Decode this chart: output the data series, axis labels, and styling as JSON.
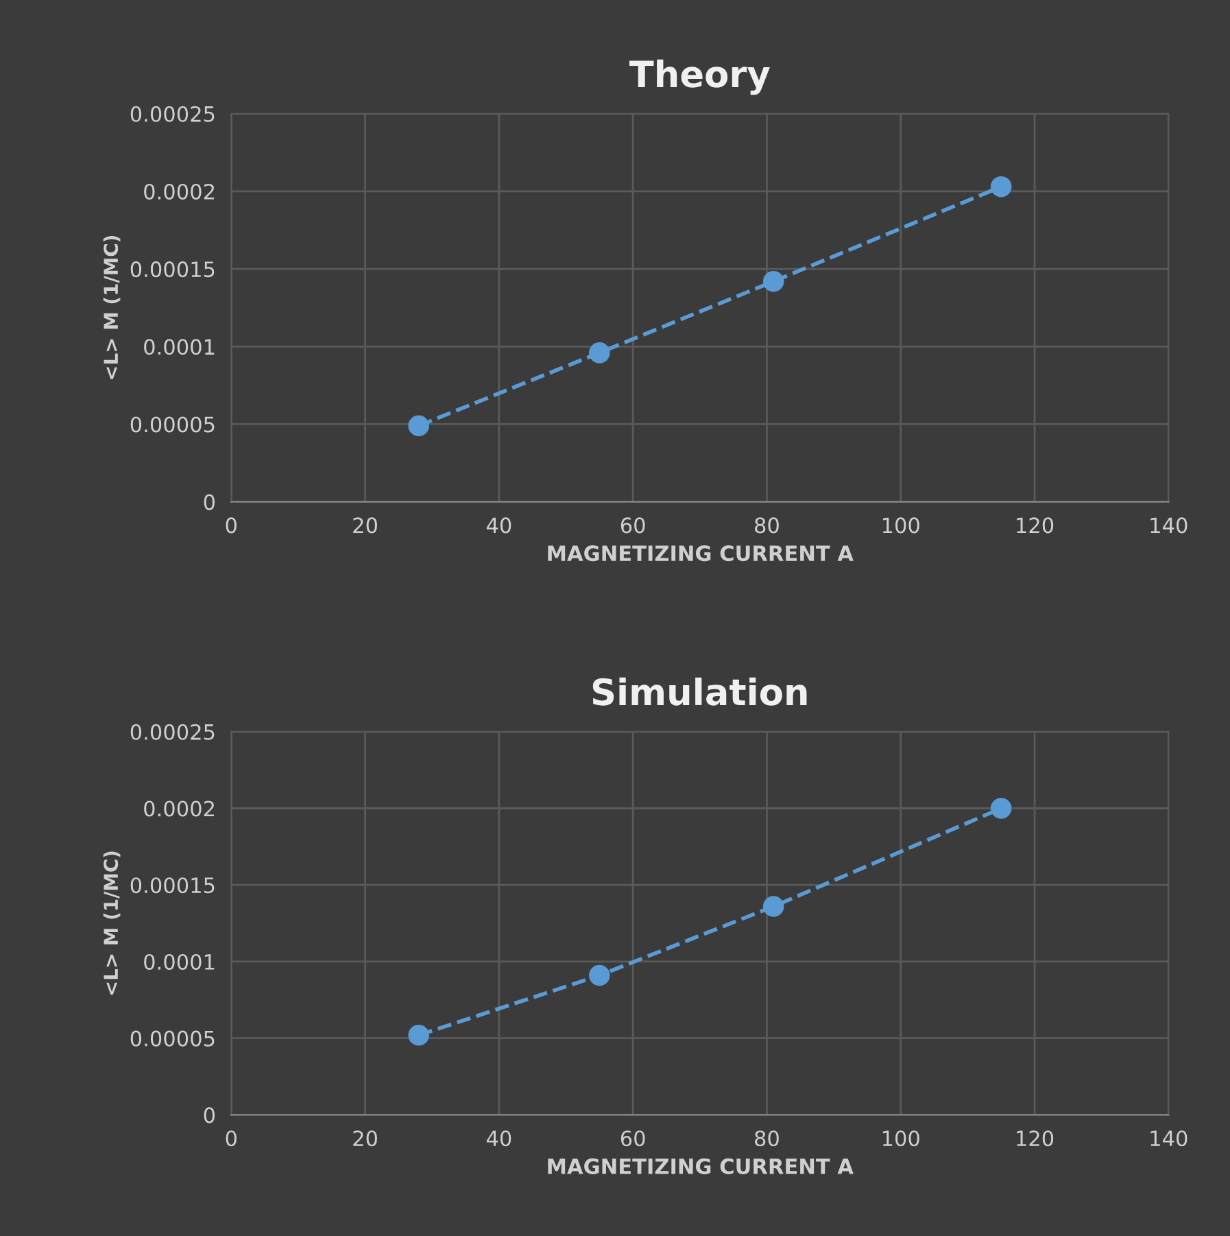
{
  "chart_data": [
    {
      "type": "line",
      "title": "Theory",
      "xlabel": "MAGNETIZING CURRENT A",
      "ylabel": "<L> M (1/MC)",
      "x": [
        28,
        55,
        81,
        115
      ],
      "series": [
        {
          "color": "#5b9bd5",
          "values": [
            4.9e-05,
            9.6e-05,
            0.000142,
            0.000203
          ]
        }
      ],
      "xlim": [
        0,
        140
      ],
      "xticks": [
        0,
        20,
        40,
        60,
        80,
        100,
        120,
        140
      ],
      "ylim": [
        0,
        0.00025
      ],
      "yticks": [
        {
          "value": 0,
          "label": "0"
        },
        {
          "value": 5e-05,
          "label": "0.00005"
        },
        {
          "value": 0.0001,
          "label": "0.0001"
        },
        {
          "value": 0.00015,
          "label": "0.00015"
        },
        {
          "value": 0.0002,
          "label": "0.0002"
        },
        {
          "value": 0.00025,
          "label": "0.00025"
        }
      ],
      "grid": true,
      "marker": "circle",
      "line_style": "dashed"
    },
    {
      "type": "line",
      "title": "Simulation",
      "xlabel": "MAGNETIZING CURRENT A",
      "ylabel": "<L> M (1/MC)",
      "x": [
        28,
        55,
        81,
        115
      ],
      "series": [
        {
          "color": "#5b9bd5",
          "values": [
            5.2e-05,
            9.1e-05,
            0.000136,
            0.0002
          ]
        }
      ],
      "xlim": [
        0,
        140
      ],
      "xticks": [
        0,
        20,
        40,
        60,
        80,
        100,
        120,
        140
      ],
      "ylim": [
        0,
        0.00025
      ],
      "yticks": [
        {
          "value": 0,
          "label": "0"
        },
        {
          "value": 5e-05,
          "label": "0.00005"
        },
        {
          "value": 0.0001,
          "label": "0.0001"
        },
        {
          "value": 0.00015,
          "label": "0.00015"
        },
        {
          "value": 0.0002,
          "label": "0.0002"
        },
        {
          "value": 0.00025,
          "label": "0.00025"
        }
      ],
      "grid": true,
      "marker": "circle",
      "line_style": "dashed"
    }
  ]
}
